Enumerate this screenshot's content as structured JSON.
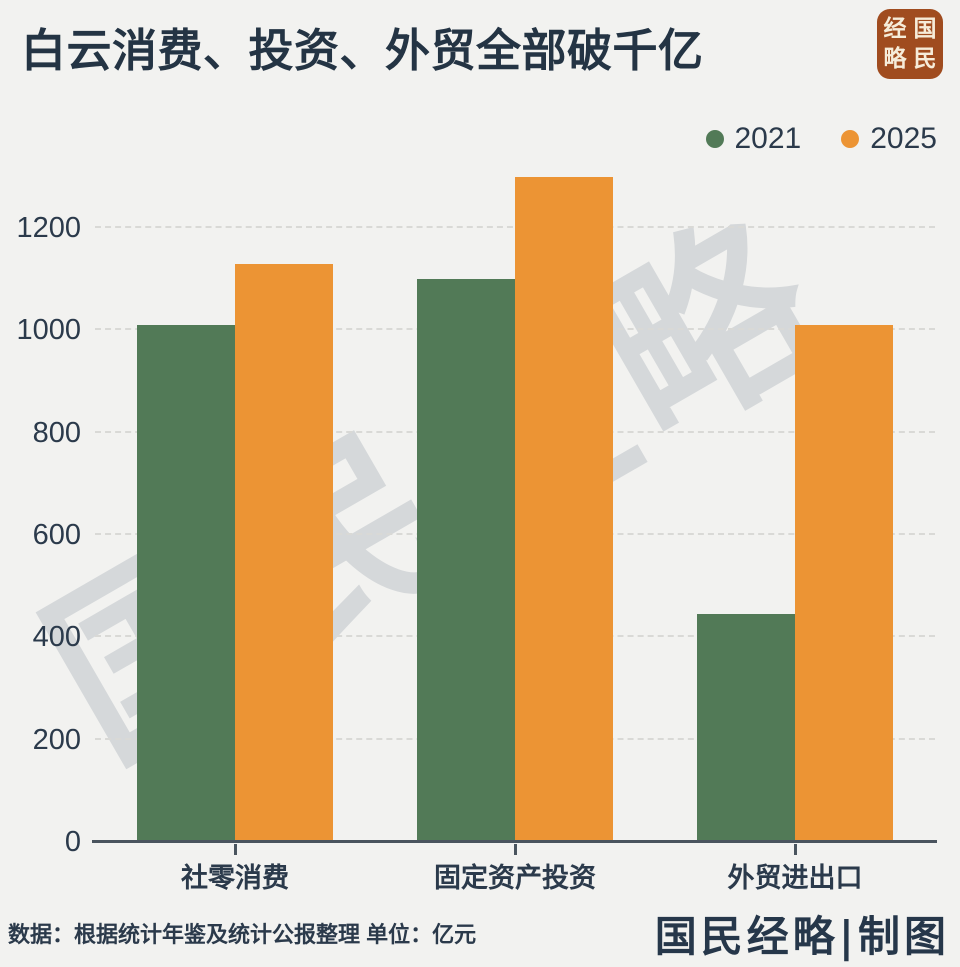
{
  "page": {
    "background": "#f2f2f0"
  },
  "title": "白云消费、投资、外贸全部破千亿",
  "logo": {
    "left_column": "经略",
    "right_column": "国民"
  },
  "chart_data": {
    "type": "bar",
    "title": "白云消费、投资、外贸全部破千亿",
    "categories": [
      "社零消费",
      "固定资产投资",
      "外贸进出口"
    ],
    "series": [
      {
        "name": "2021",
        "color": "#527a57",
        "values": [
          1010,
          1100,
          445
        ]
      },
      {
        "name": "2025",
        "color": "#ec9434",
        "values": [
          1130,
          1300,
          1010
        ]
      }
    ],
    "yticks": [
      0,
      200,
      400,
      600,
      800,
      1000,
      1200
    ],
    "ylim": [
      0,
      1300
    ],
    "grid": "horizontal-dashed",
    "legend_position": "top-right",
    "unit": "亿元"
  },
  "watermark": "国民经略",
  "footer": {
    "source": "数据：根据统计年鉴及统计公报整理 单位：亿元",
    "credit": "国民经略|制图"
  },
  "colors": {
    "bar_2021": "#527a57",
    "bar_2025": "#ec9434",
    "title_text": "#243444",
    "axis": "#4a545e",
    "gridline": "#d9d9d6",
    "logo_background": "#a04c1f",
    "logo_text": "#f6ecd9",
    "watermark": "#d5d8da"
  }
}
